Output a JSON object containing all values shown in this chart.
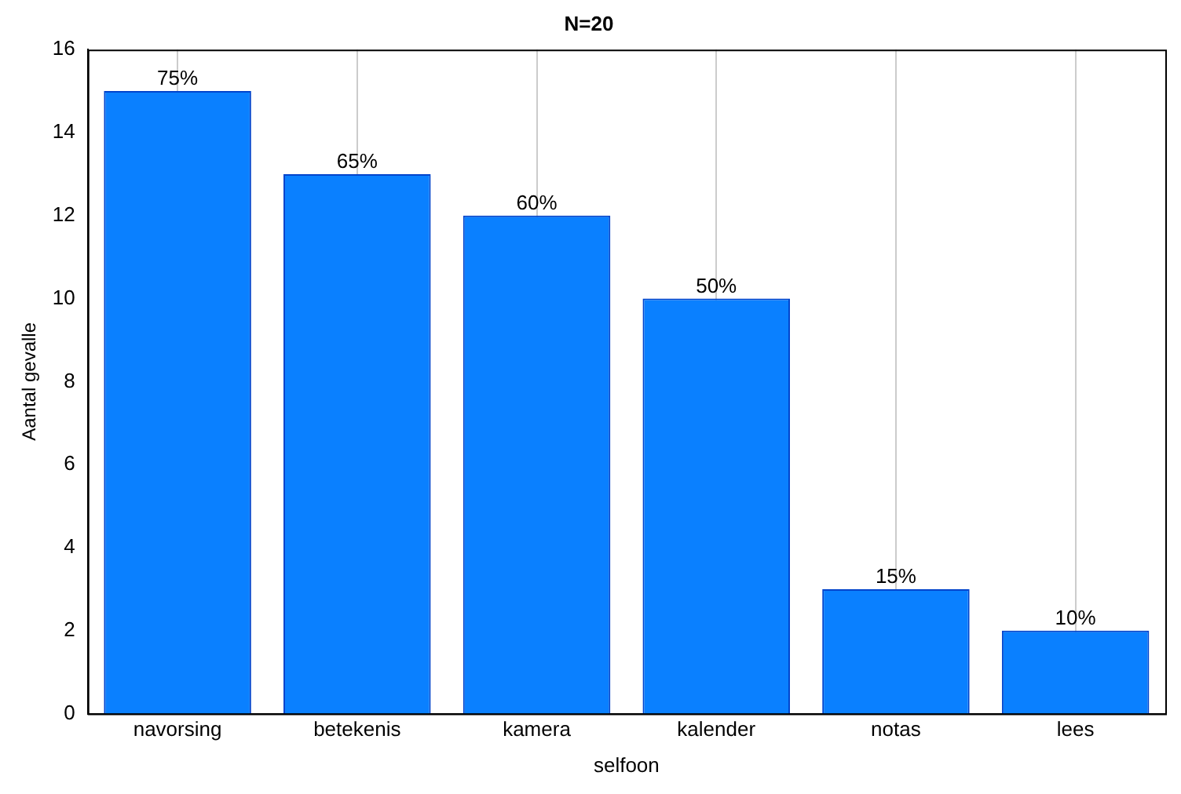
{
  "chart_data": {
    "type": "bar",
    "title": "N=20",
    "xlabel": "selfoon",
    "ylabel": "Aantal gevalle",
    "categories": [
      "navorsing",
      "betekenis",
      "kamera",
      "kalender",
      "notas",
      "lees"
    ],
    "values": [
      15,
      13,
      12,
      10,
      3,
      2
    ],
    "annotations": [
      {
        "text": "75%",
        "x": "navorsing",
        "y": 15
      },
      {
        "text": "65%",
        "x": "betekenis",
        "y": 13
      },
      {
        "text": "60%",
        "x": "kamera",
        "y": 12
      },
      {
        "text": "50%",
        "x": "kalender",
        "y": 10
      },
      {
        "text": "15%",
        "x": "notas",
        "y": 3
      },
      {
        "text": "10%",
        "x": "lees",
        "y": 2
      }
    ],
    "color": "#0a80ff",
    "ylim": [
      0,
      16
    ],
    "yticks": [
      0,
      2,
      4,
      6,
      8,
      10,
      12,
      14,
      16
    ],
    "grid": "x",
    "legend": false
  }
}
